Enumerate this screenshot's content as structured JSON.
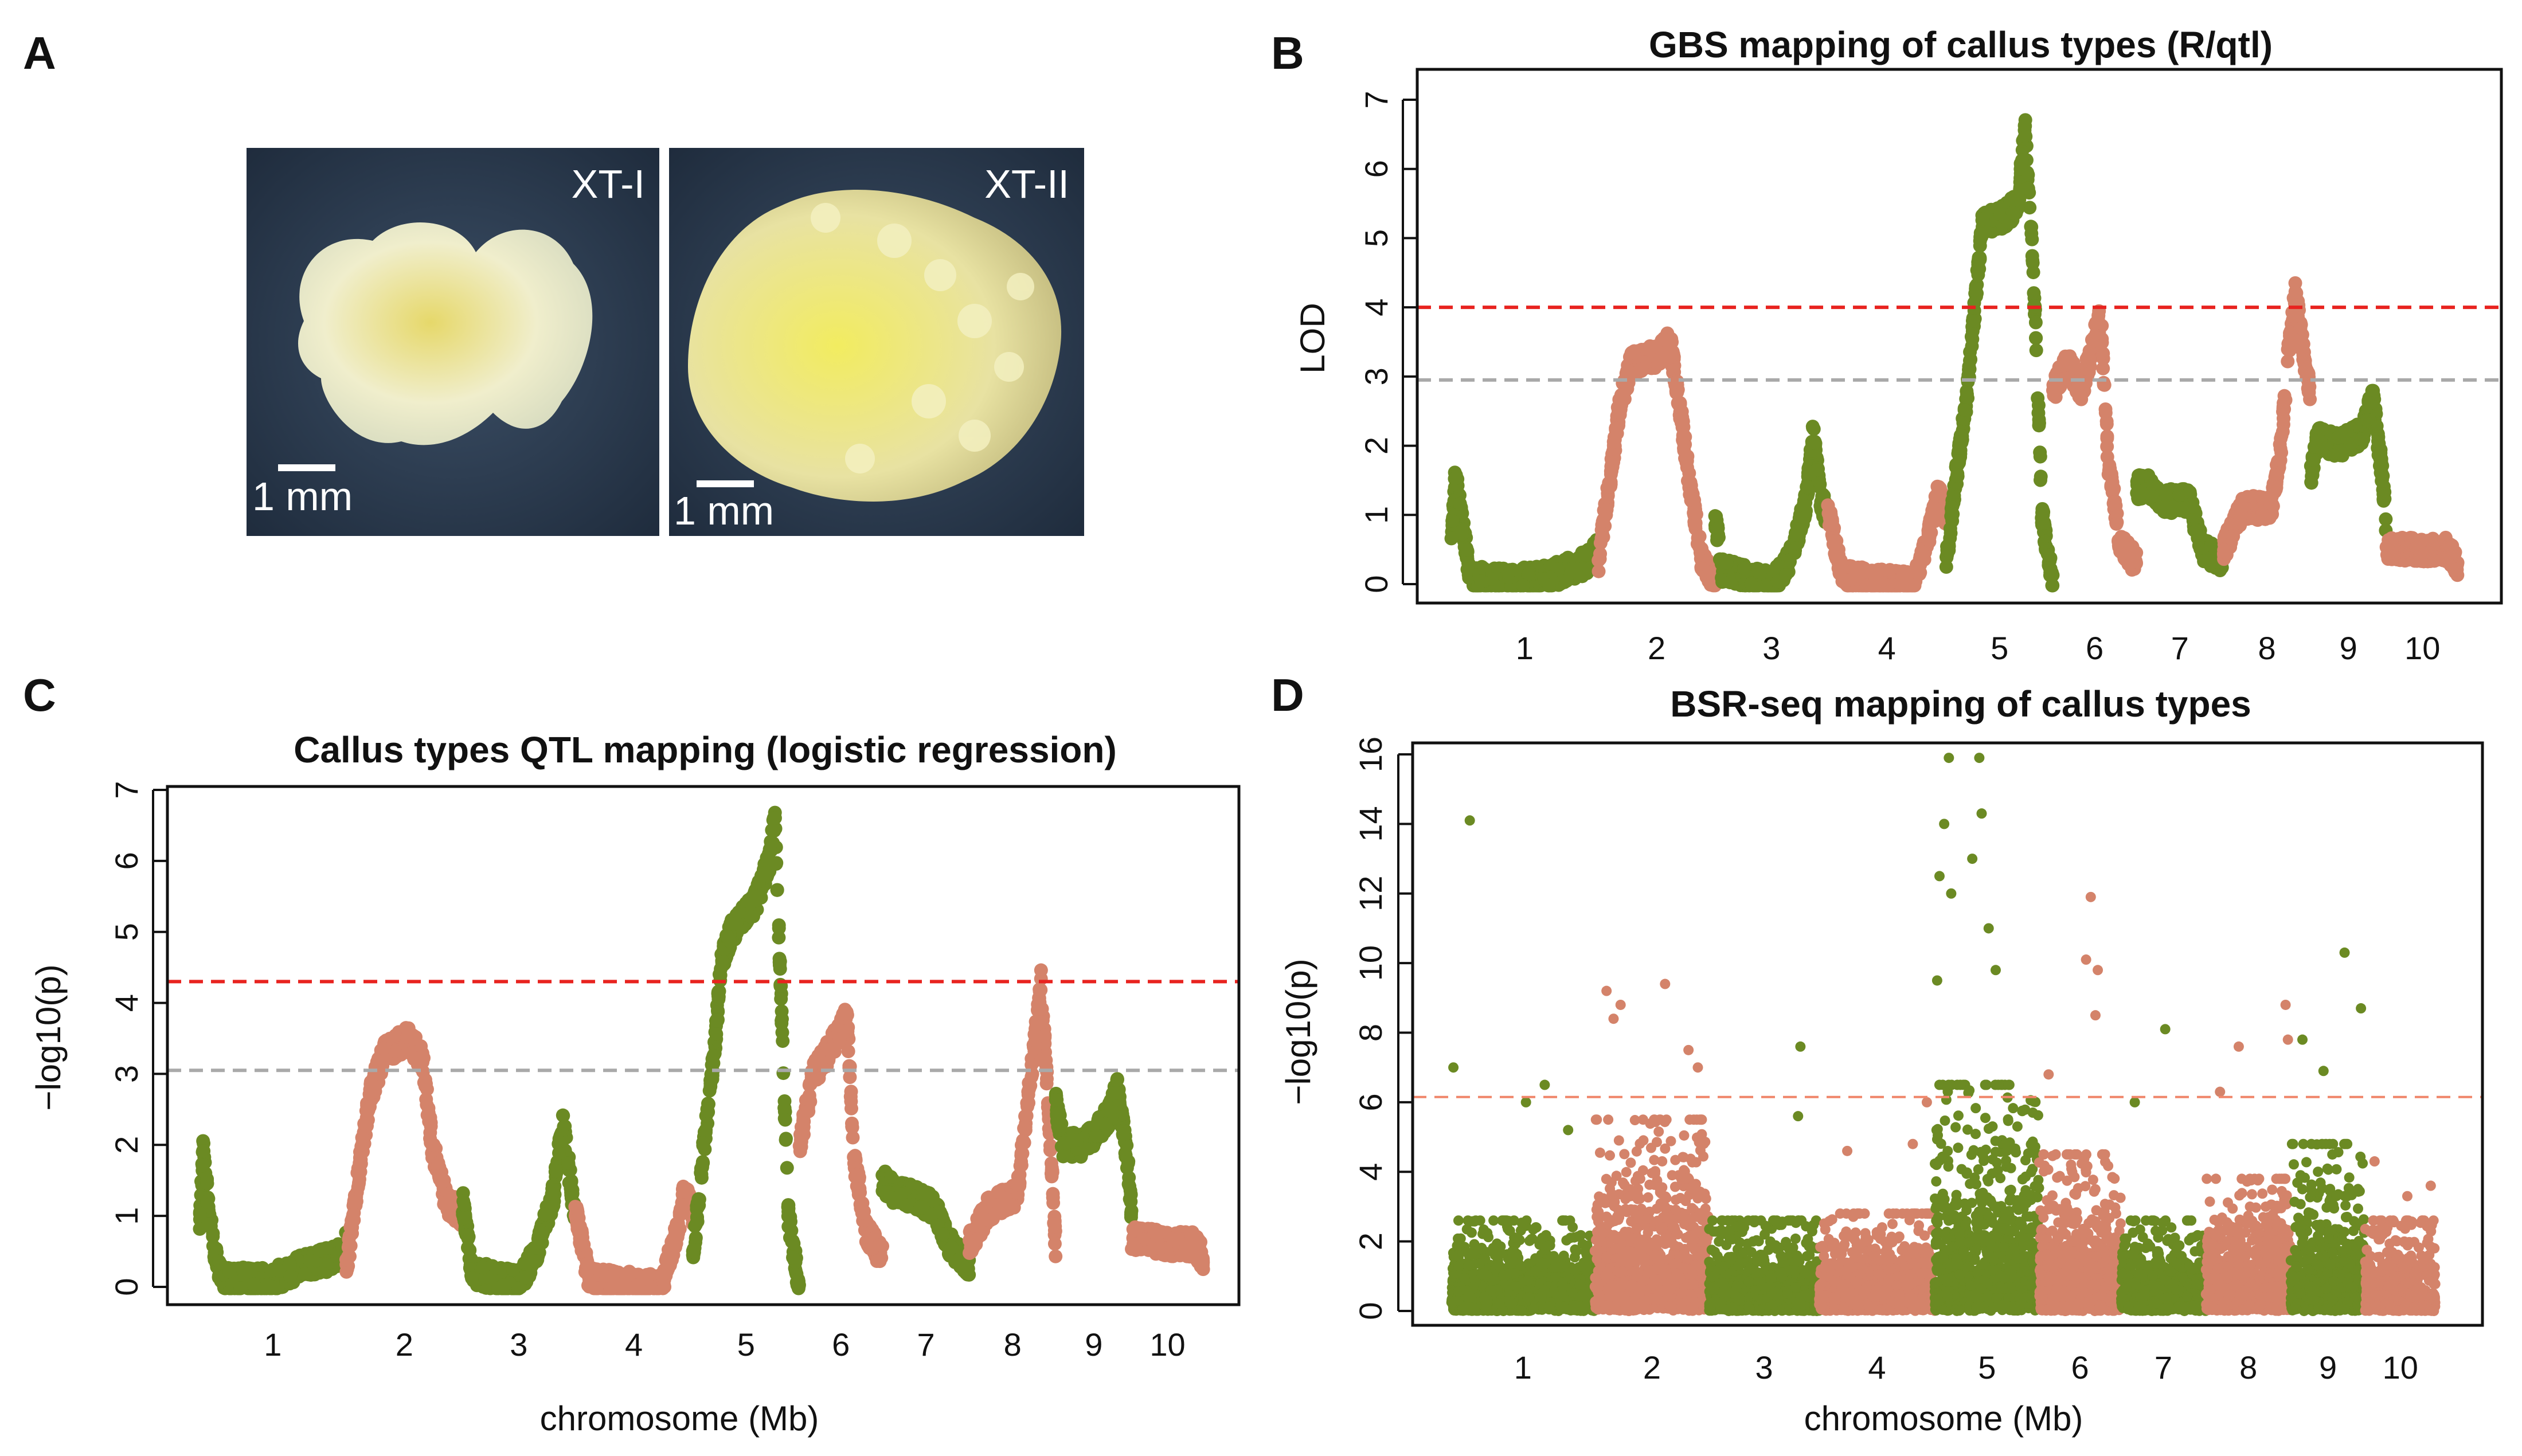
{
  "panel_labels": {
    "a": "A",
    "b": "B",
    "c": "C",
    "d": "D"
  },
  "photos": {
    "left": {
      "label": "XT-I",
      "scale": "1 mm"
    },
    "right": {
      "label": "XT-II",
      "scale": "1 mm"
    }
  },
  "colors": {
    "green": "#6b8a23",
    "salmon": "#d4836a",
    "red_threshold": "#e8231f",
    "grey_threshold": "#a9a9a9",
    "bsr_threshold": "#f0866a"
  },
  "chromosomes": {
    "labels": [
      "1",
      "2",
      "3",
      "4",
      "5",
      "6",
      "7",
      "8",
      "9",
      "10"
    ],
    "lengths_mb": [
      307,
      244,
      235,
      247,
      223,
      174,
      182,
      181,
      159,
      150
    ]
  },
  "chart_data": [
    {
      "id": "B",
      "type": "scatter",
      "title": "GBS mapping of callus types (R/qtl)",
      "xlabel": "",
      "ylabel": "LOD",
      "ylim": [
        0,
        7
      ],
      "yticks": [
        "0",
        "1",
        "2",
        "3",
        "4",
        "5",
        "6",
        "7"
      ],
      "thresholds": [
        {
          "value": 4.0,
          "color": "red"
        },
        {
          "value": 2.95,
          "color": "grey"
        }
      ],
      "profiles": [
        [
          [
            0,
            0.6
          ],
          [
            8,
            1.5
          ],
          [
            15,
            1.3
          ],
          [
            25,
            0.8
          ],
          [
            40,
            0.1
          ],
          [
            120,
            0.05
          ],
          [
            200,
            0.1
          ],
          [
            280,
            0.3
          ],
          [
            307,
            0.5
          ]
        ],
        [
          [
            0,
            0.3
          ],
          [
            30,
            1.8
          ],
          [
            45,
            2.6
          ],
          [
            70,
            3.2
          ],
          [
            120,
            3.3
          ],
          [
            150,
            3.5
          ],
          [
            170,
            2.6
          ],
          [
            190,
            1.5
          ],
          [
            215,
            0.4
          ],
          [
            244,
            0
          ]
        ],
        [
          [
            0,
            1.0
          ],
          [
            15,
            0.2
          ],
          [
            120,
            0
          ],
          [
            160,
            0.4
          ],
          [
            190,
            1.2
          ],
          [
            205,
            2.2
          ],
          [
            220,
            1.2
          ],
          [
            235,
            1.0
          ]
        ],
        [
          [
            0,
            1.1
          ],
          [
            30,
            0.1
          ],
          [
            180,
            0
          ],
          [
            215,
            0.8
          ],
          [
            230,
            1.3
          ],
          [
            247,
            1.0
          ]
        ],
        [
          [
            0,
            0.3
          ],
          [
            20,
            1.5
          ],
          [
            45,
            2.8
          ],
          [
            60,
            4.0
          ],
          [
            75,
            5.2
          ],
          [
            120,
            5.3
          ],
          [
            150,
            5.5
          ],
          [
            165,
            6.6
          ],
          [
            178,
            5.0
          ],
          [
            188,
            3.5
          ],
          [
            200,
            1.0
          ],
          [
            223,
            0
          ]
        ],
        [
          [
            0,
            2.8
          ],
          [
            30,
            3.2
          ],
          [
            60,
            2.8
          ],
          [
            85,
            3.5
          ],
          [
            100,
            3.9
          ],
          [
            115,
            1.8
          ],
          [
            140,
            0.6
          ],
          [
            174,
            0.3
          ]
        ],
        [
          [
            0,
            1.4
          ],
          [
            30,
            1.4
          ],
          [
            60,
            1.2
          ],
          [
            110,
            1.2
          ],
          [
            140,
            0.5
          ],
          [
            182,
            0.3
          ]
        ],
        [
          [
            0,
            0.5
          ],
          [
            40,
            1.1
          ],
          [
            100,
            1.1
          ],
          [
            120,
            2.0
          ],
          [
            135,
            3.3
          ],
          [
            150,
            4.2
          ],
          [
            170,
            3.2
          ],
          [
            181,
            2.8
          ]
        ],
        [
          [
            0,
            1.5
          ],
          [
            15,
            2.1
          ],
          [
            60,
            2.0
          ],
          [
            110,
            2.2
          ],
          [
            130,
            2.7
          ],
          [
            150,
            1.6
          ],
          [
            159,
            0.8
          ]
        ],
        [
          [
            0,
            0.5
          ],
          [
            80,
            0.5
          ],
          [
            130,
            0.5
          ],
          [
            150,
            0.2
          ]
        ]
      ]
    },
    {
      "id": "C",
      "type": "scatter",
      "title": "Callus types QTL mapping (logistic regression)",
      "xlabel": "chromosome (Mb)",
      "ylabel": "−log10(p)",
      "ylim": [
        0,
        7
      ],
      "yticks": [
        "0",
        "1",
        "2",
        "3",
        "4",
        "5",
        "6",
        "7"
      ],
      "thresholds": [
        {
          "value": 4.3,
          "color": "red"
        },
        {
          "value": 3.05,
          "color": "grey"
        }
      ],
      "profiles": [
        [
          [
            0,
            0.8
          ],
          [
            8,
            2.0
          ],
          [
            15,
            1.4
          ],
          [
            30,
            0.5
          ],
          [
            50,
            0.1
          ],
          [
            150,
            0.1
          ],
          [
            220,
            0.3
          ],
          [
            280,
            0.4
          ],
          [
            307,
            0.6
          ]
        ],
        [
          [
            0,
            0.2
          ],
          [
            30,
            1.8
          ],
          [
            50,
            2.7
          ],
          [
            80,
            3.3
          ],
          [
            130,
            3.5
          ],
          [
            160,
            3.2
          ],
          [
            180,
            2.0
          ],
          [
            210,
            1.2
          ],
          [
            244,
            1.0
          ]
        ],
        [
          [
            0,
            1.2
          ],
          [
            20,
            0.2
          ],
          [
            120,
            0.05
          ],
          [
            160,
            0.6
          ],
          [
            190,
            1.3
          ],
          [
            210,
            2.3
          ],
          [
            235,
            1.0
          ]
        ],
        [
          [
            0,
            1.1
          ],
          [
            30,
            0.1
          ],
          [
            180,
            0
          ],
          [
            215,
            0.8
          ],
          [
            230,
            1.4
          ],
          [
            247,
            1.0
          ]
        ],
        [
          [
            0,
            0.4
          ],
          [
            20,
            1.8
          ],
          [
            45,
            3.3
          ],
          [
            60,
            4.6
          ],
          [
            80,
            5.0
          ],
          [
            130,
            5.4
          ],
          [
            160,
            6.0
          ],
          [
            172,
            6.6
          ],
          [
            185,
            4.0
          ],
          [
            200,
            1.0
          ],
          [
            223,
            0
          ]
        ],
        [
          [
            0,
            2.0
          ],
          [
            30,
            3.0
          ],
          [
            60,
            3.3
          ],
          [
            85,
            3.6
          ],
          [
            100,
            3.8
          ],
          [
            115,
            1.8
          ],
          [
            140,
            0.8
          ],
          [
            174,
            0.4
          ]
        ],
        [
          [
            0,
            1.5
          ],
          [
            30,
            1.3
          ],
          [
            60,
            1.3
          ],
          [
            110,
            1.1
          ],
          [
            140,
            0.6
          ],
          [
            182,
            0.3
          ]
        ],
        [
          [
            0,
            0.6
          ],
          [
            40,
            1.1
          ],
          [
            100,
            1.3
          ],
          [
            120,
            2.5
          ],
          [
            135,
            3.3
          ],
          [
            150,
            4.3
          ],
          [
            170,
            2.0
          ],
          [
            181,
            0.5
          ]
        ],
        [
          [
            0,
            2.6
          ],
          [
            15,
            2.0
          ],
          [
            60,
            2.0
          ],
          [
            110,
            2.4
          ],
          [
            130,
            2.8
          ],
          [
            150,
            1.8
          ],
          [
            159,
            1.0
          ]
        ],
        [
          [
            0,
            0.7
          ],
          [
            80,
            0.6
          ],
          [
            130,
            0.6
          ],
          [
            150,
            0.4
          ]
        ]
      ]
    },
    {
      "id": "D",
      "type": "scatter",
      "title": "BSR-seq mapping of callus types",
      "xlabel": "chromosome (Mb)",
      "ylabel": "−log10(p)",
      "ylim": [
        0,
        16
      ],
      "yticks": [
        "0",
        "2",
        "4",
        "6",
        "8",
        "10",
        "12",
        "14",
        "16"
      ],
      "thresholds": [
        {
          "value": 6.15,
          "color": "bsr"
        }
      ],
      "background_max": [
        2.6,
        5.5,
        2.6,
        2.8,
        6.5,
        4.5,
        2.6,
        3.8,
        4.8,
        2.6
      ],
      "outliers": [
        [
          [
            40,
            14.1
          ],
          [
            5,
            7.0
          ],
          [
            200,
            6.5
          ],
          [
            160,
            6.0
          ],
          [
            250,
            5.2
          ]
        ],
        [
          [
            25,
            9.2
          ],
          [
            40,
            8.4
          ],
          [
            55,
            8.8
          ],
          [
            150,
            9.4
          ],
          [
            200,
            7.5
          ],
          [
            220,
            7.0
          ]
        ],
        [
          [
            195,
            7.6
          ],
          [
            190,
            5.6
          ]
        ],
        [
          [
            230,
            6.0
          ],
          [
            200,
            4.8
          ],
          [
            60,
            4.6
          ]
        ],
        [
          [
            30,
            15.9
          ],
          [
            95,
            15.9
          ],
          [
            100,
            14.3
          ],
          [
            20,
            14.0
          ],
          [
            80,
            13.0
          ],
          [
            10,
            12.5
          ],
          [
            35,
            12.0
          ],
          [
            115,
            11.0
          ],
          [
            5,
            9.5
          ],
          [
            130,
            9.8
          ]
        ],
        [
          [
            110,
            11.9
          ],
          [
            100,
            10.1
          ],
          [
            125,
            9.8
          ],
          [
            120,
            8.5
          ],
          [
            20,
            6.8
          ]
        ],
        [
          [
            95,
            8.1
          ],
          [
            30,
            6.0
          ]
        ],
        [
          [
            170,
            8.8
          ],
          [
            70,
            7.6
          ],
          [
            175,
            7.8
          ],
          [
            30,
            6.3
          ]
        ],
        [
          [
            115,
            10.3
          ],
          [
            25,
            7.8
          ],
          [
            150,
            8.7
          ],
          [
            70,
            6.9
          ]
        ],
        [
          [
            20,
            4.3
          ],
          [
            90,
            3.3
          ],
          [
            140,
            3.6
          ]
        ]
      ]
    }
  ]
}
